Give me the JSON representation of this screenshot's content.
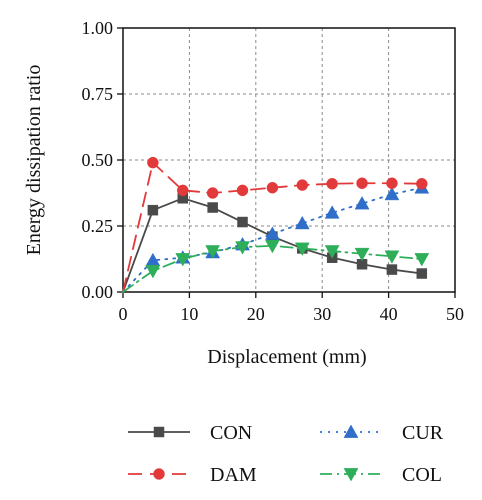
{
  "chart_data": {
    "type": "line",
    "xlabel": "Displacement (mm)",
    "ylabel": "Energy dissipation ratio",
    "xlim": [
      0,
      50
    ],
    "ylim": [
      0,
      1.0
    ],
    "x_ticks": [
      0,
      10,
      20,
      30,
      40,
      50
    ],
    "y_ticks": [
      0.0,
      0.25,
      0.5,
      0.75,
      1.0
    ],
    "x_tick_labels": [
      "0",
      "10",
      "20",
      "30",
      "40",
      "50"
    ],
    "y_tick_labels": [
      "0.00",
      "0.25",
      "0.50",
      "0.75",
      "1.00"
    ],
    "grid": "on (dotted)",
    "legend_position": "bottom",
    "series": [
      {
        "name": "CON",
        "color": "#4a4a4a",
        "marker": "square",
        "line_style": "solid",
        "x": [
          0,
          4.5,
          9,
          13.5,
          18,
          22.5,
          27,
          31.5,
          36,
          40.5,
          45
        ],
        "y": [
          0.0,
          0.31,
          0.355,
          0.32,
          0.265,
          0.21,
          0.165,
          0.13,
          0.105,
          0.085,
          0.07
        ]
      },
      {
        "name": "CUR",
        "color": "#2f6fc9",
        "marker": "triangle-up",
        "line_style": "dotted",
        "x": [
          0,
          4.5,
          9,
          13.5,
          18,
          22.5,
          27,
          31.5,
          36,
          40.5,
          45
        ],
        "y": [
          0.0,
          0.12,
          0.13,
          0.15,
          0.18,
          0.22,
          0.26,
          0.3,
          0.335,
          0.37,
          0.395
        ]
      },
      {
        "name": "DAM",
        "color": "#e23a3a",
        "marker": "circle",
        "line_style": "dashed",
        "x": [
          0,
          4.5,
          9,
          13.5,
          18,
          22.5,
          27,
          31.5,
          36,
          40.5,
          45
        ],
        "y": [
          0.0,
          0.49,
          0.385,
          0.375,
          0.385,
          0.395,
          0.405,
          0.41,
          0.412,
          0.412,
          0.41
        ]
      },
      {
        "name": "COL",
        "color": "#2fae5a",
        "marker": "triangle-down",
        "line_style": "dashdot",
        "x": [
          0,
          4.5,
          9,
          13.5,
          18,
          22.5,
          27,
          31.5,
          36,
          40.5,
          45
        ],
        "y": [
          0.0,
          0.08,
          0.125,
          0.155,
          0.17,
          0.175,
          0.165,
          0.155,
          0.145,
          0.135,
          0.125
        ]
      }
    ]
  }
}
